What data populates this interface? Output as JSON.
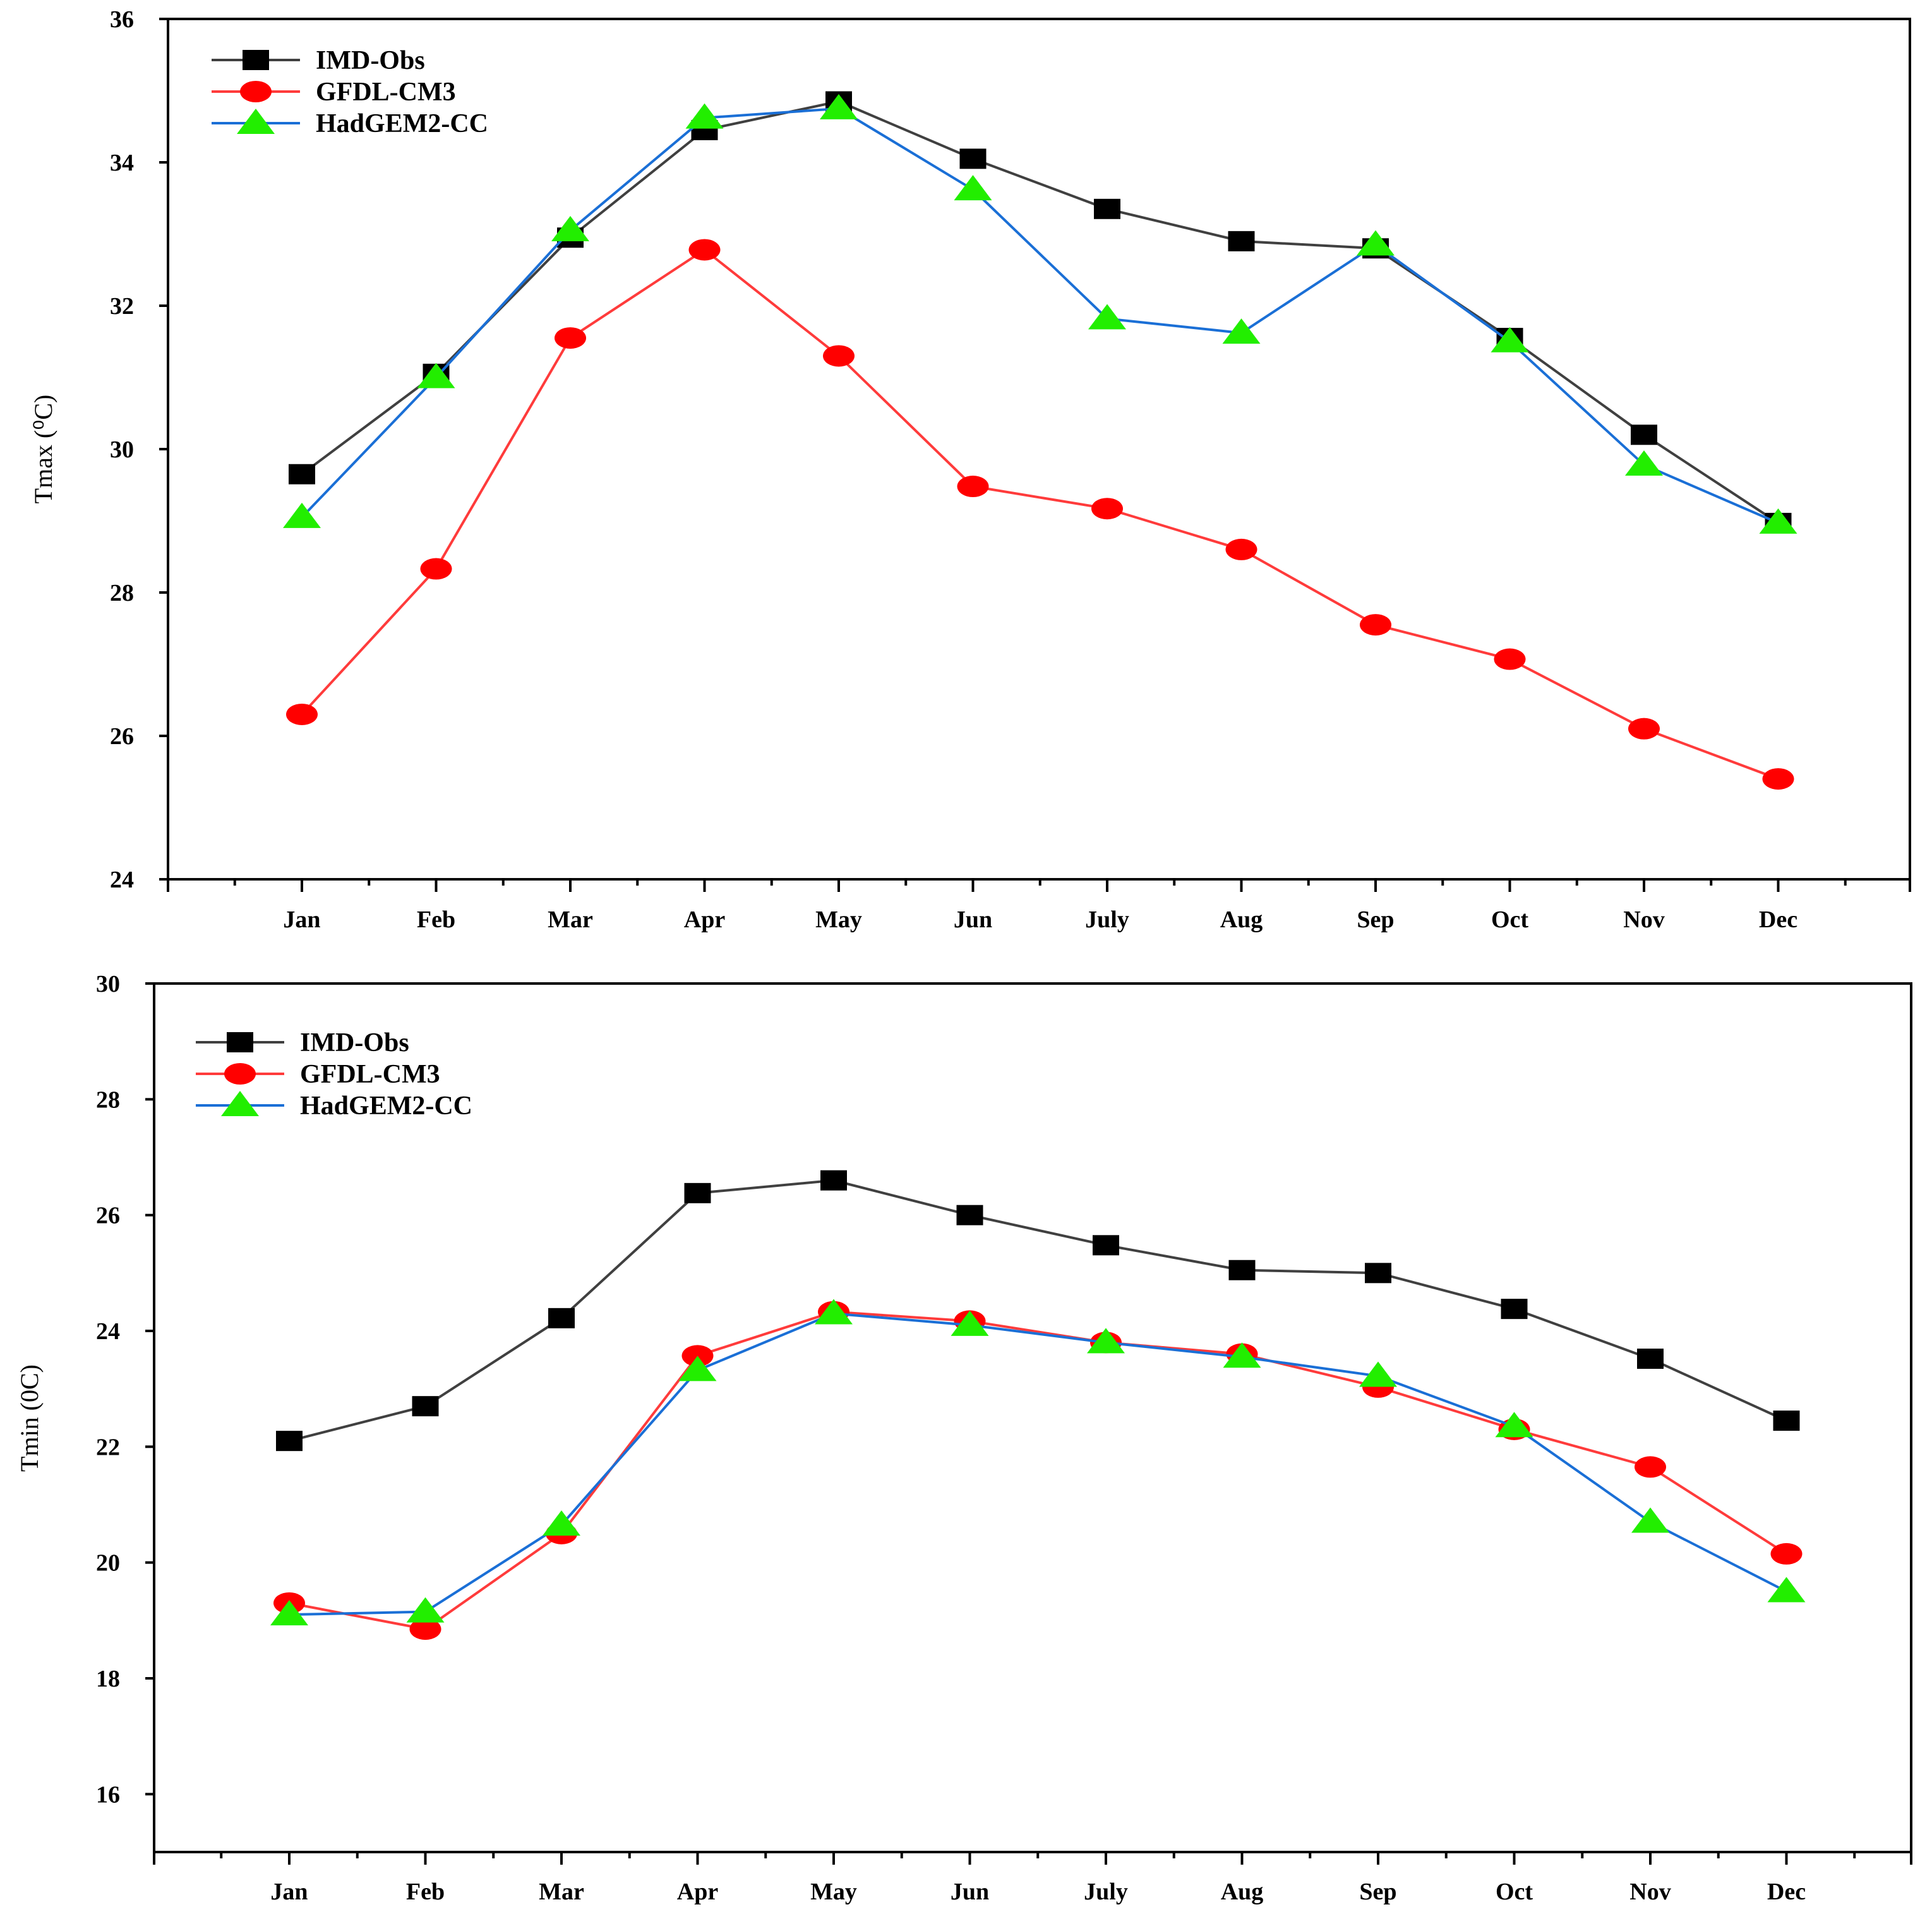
{
  "colors": {
    "imd_line": "#404040",
    "imd_marker": "#000000",
    "gfdl_line": "#ff3b3b",
    "gfdl_marker": "#ff0000",
    "hadgem_line": "#1a6fd6",
    "hadgem_marker": "#22ee00"
  },
  "chart_data": [
    {
      "id": "tmax",
      "type": "line",
      "title": "",
      "xlabel": "",
      "ylabel": "Tmax (⁰C)",
      "ylim": [
        24,
        36
      ],
      "yticks": [
        24,
        26,
        28,
        30,
        32,
        34,
        36
      ],
      "categories": [
        "Jan",
        "Feb",
        "Mar",
        "Apr",
        "May",
        "Jun",
        "July",
        "Aug",
        "Sep",
        "Oct",
        "Nov",
        "Dec"
      ],
      "legend_position": "top-left",
      "series": [
        {
          "name": "IMD-Obs",
          "marker": "square",
          "values": [
            29.65,
            31.05,
            32.95,
            34.45,
            34.85,
            34.05,
            33.35,
            32.9,
            32.8,
            31.55,
            30.2,
            28.97
          ]
        },
        {
          "name": "GFDL-CM3",
          "marker": "circle",
          "values": [
            26.3,
            28.33,
            31.55,
            32.78,
            31.3,
            29.48,
            29.17,
            28.6,
            27.55,
            27.07,
            26.1,
            25.4
          ]
        },
        {
          "name": "HadGEM2-CC",
          "marker": "triangle",
          "values": [
            29.05,
            31.0,
            33.05,
            34.62,
            34.75,
            33.62,
            31.82,
            31.62,
            32.85,
            31.5,
            29.78,
            28.97
          ]
        }
      ]
    },
    {
      "id": "tmin",
      "type": "line",
      "title": "",
      "xlabel": "",
      "ylabel": "Tmin (0C)",
      "ylim": [
        15,
        30
      ],
      "yticks": [
        16,
        18,
        20,
        22,
        24,
        26,
        28,
        30
      ],
      "categories": [
        "Jan",
        "Feb",
        "Mar",
        "Apr",
        "May",
        "Jun",
        "July",
        "Aug",
        "Sep",
        "Oct",
        "Nov",
        "Dec"
      ],
      "legend_position": "top-left",
      "series": [
        {
          "name": "IMD-Obs",
          "marker": "square",
          "values": [
            22.1,
            22.7,
            24.22,
            26.38,
            26.6,
            26.0,
            25.48,
            25.05,
            25.0,
            24.38,
            23.52,
            22.45
          ]
        },
        {
          "name": "GFDL-CM3",
          "marker": "circle",
          "values": [
            19.3,
            18.85,
            20.5,
            23.57,
            24.33,
            24.17,
            23.8,
            23.6,
            23.03,
            22.3,
            21.65,
            20.15
          ]
        },
        {
          "name": "HadGEM2-CC",
          "marker": "triangle",
          "values": [
            19.1,
            19.15,
            20.65,
            23.32,
            24.3,
            24.1,
            23.8,
            23.55,
            23.22,
            22.35,
            20.7,
            19.5
          ]
        }
      ]
    }
  ]
}
